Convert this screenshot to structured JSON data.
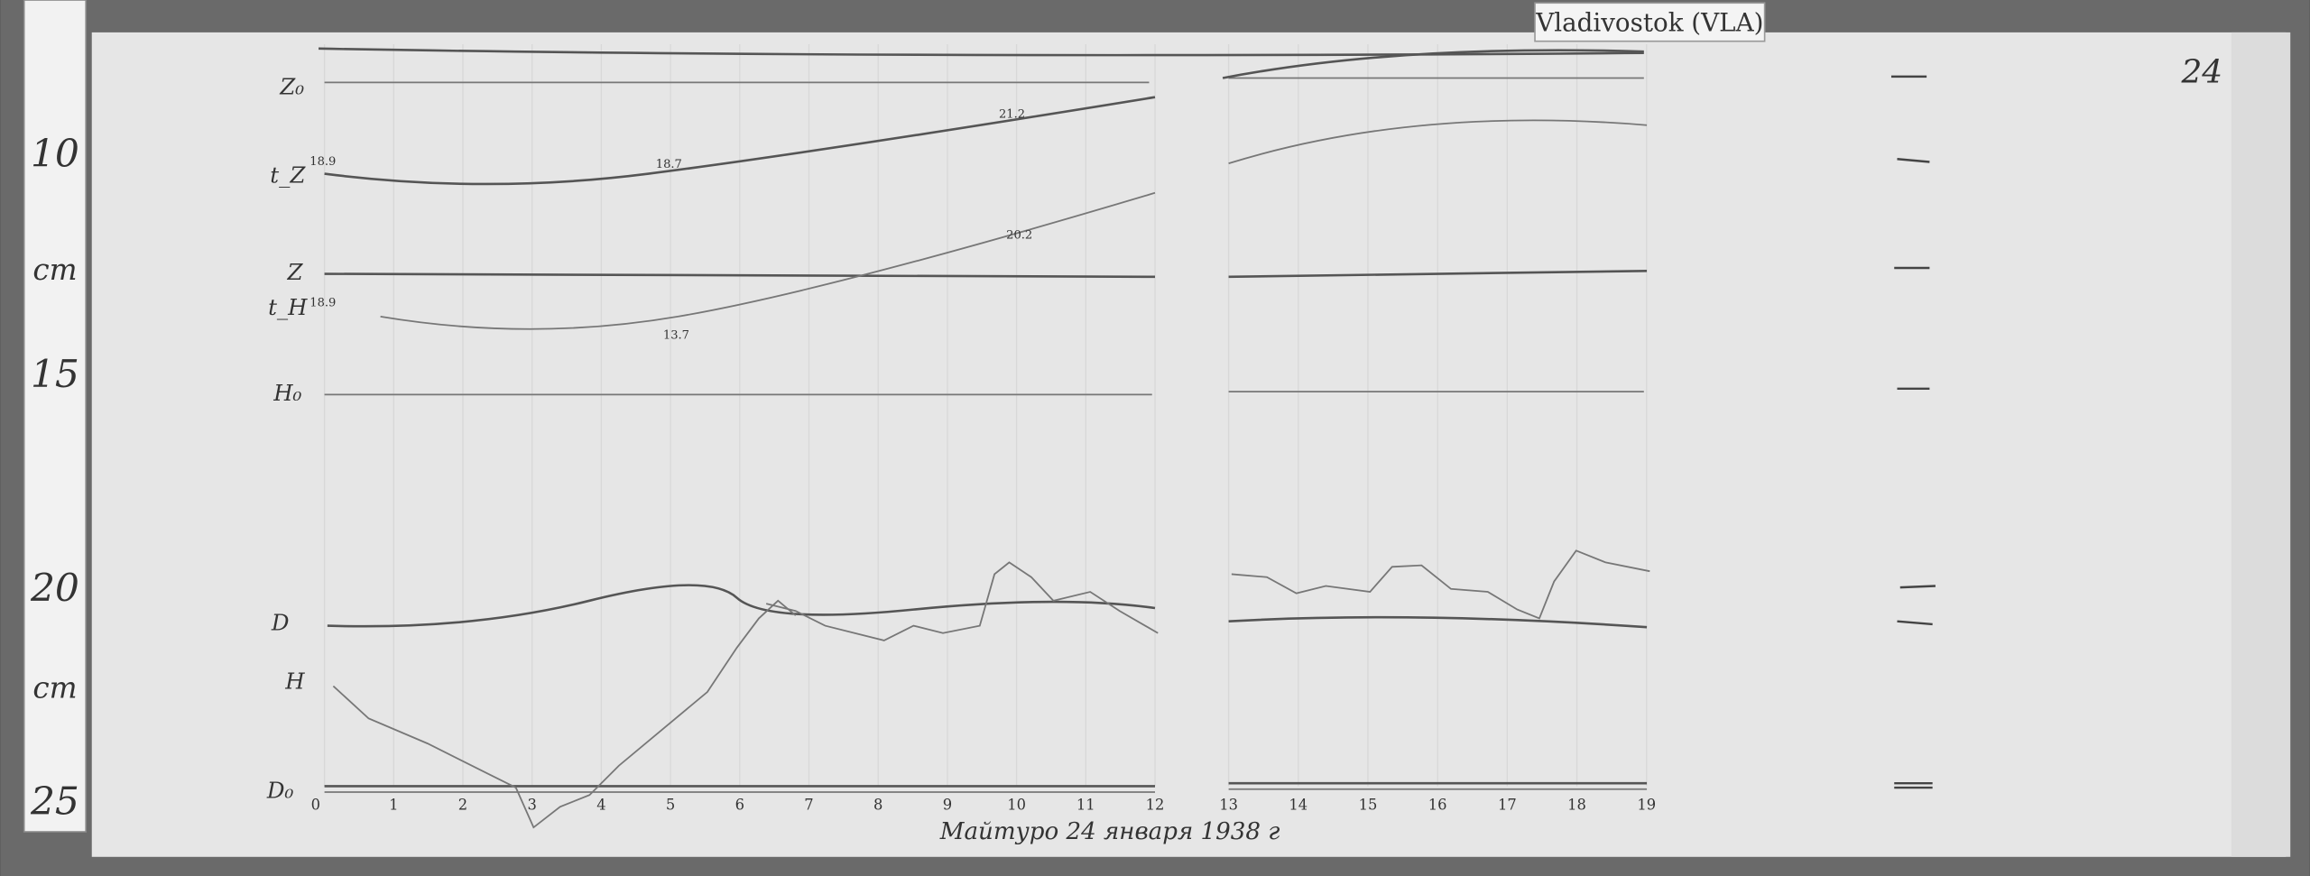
{
  "station_label": "Vladivostok (VLA)",
  "page_number": "24",
  "ruler": {
    "labels": [
      "10",
      "cm",
      "15",
      "20",
      "cm",
      "25"
    ]
  },
  "trace_labels": [
    "Z₀",
    "t_Z",
    "Z",
    "t_H",
    "H₀",
    "D",
    "H",
    "D₀"
  ],
  "annotations": [
    "18.9",
    "18.7",
    "21.2",
    "20.2",
    "18.9",
    "13.7"
  ],
  "hours": [
    "0",
    "1",
    "2",
    "3",
    "4",
    "5",
    "6",
    "7",
    "8",
    "9",
    "10",
    "11",
    "12",
    "13",
    "14",
    "15",
    "16",
    "17",
    "18",
    "19"
  ],
  "caption": "Майтуро 24 января 1938 г"
}
